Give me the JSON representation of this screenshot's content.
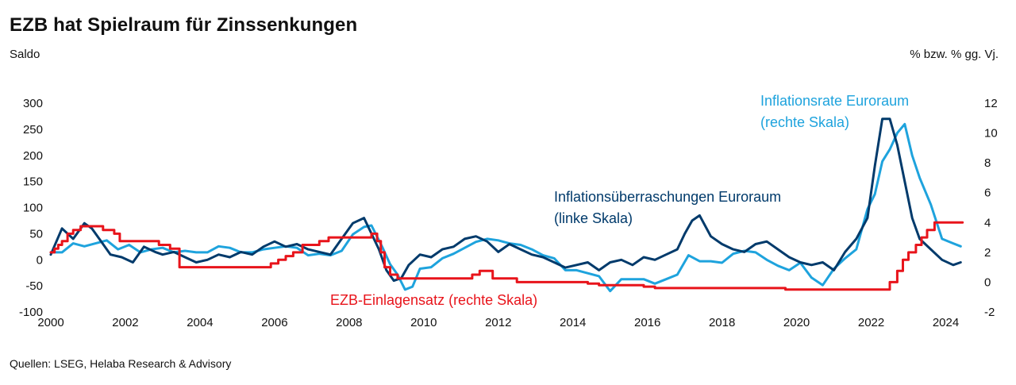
{
  "title": "EZB hat Spielraum für Zinssenkungen",
  "unit_left": "Saldo",
  "unit_right": "% bzw. % gg. Vj.",
  "source": "Quellen: LSEG, Helaba Research & Advisory",
  "chart_data": {
    "type": "line",
    "x_ticks": [
      "2000",
      "2002",
      "2004",
      "2006",
      "2008",
      "2010",
      "2012",
      "2014",
      "2016",
      "2018",
      "2020",
      "2022",
      "2024"
    ],
    "xlim": [
      2000,
      2024.5
    ],
    "y_left": {
      "ticks": [
        300,
        250,
        200,
        150,
        100,
        50,
        0,
        -50,
        -100
      ],
      "lim": [
        -100,
        300
      ]
    },
    "y_right": {
      "ticks": [
        12,
        10,
        8,
        6,
        4,
        2,
        0,
        -2
      ],
      "lim": [
        -2,
        12
      ]
    },
    "series": [
      {
        "name": "Inflationsüberraschungen Euroraum",
        "label_line2": "(linke Skala)",
        "axis": "left",
        "color": "#003a6b",
        "x": [
          2000,
          2000.3,
          2000.6,
          2000.9,
          2001.1,
          2001.3,
          2001.6,
          2001.9,
          2002.2,
          2002.5,
          2002.8,
          2003.0,
          2003.3,
          2003.6,
          2003.9,
          2004.2,
          2004.5,
          2004.8,
          2005.1,
          2005.4,
          2005.7,
          2006.0,
          2006.3,
          2006.6,
          2006.9,
          2007.2,
          2007.5,
          2007.8,
          2008.1,
          2008.4,
          2008.6,
          2008.8,
          2009.0,
          2009.2,
          2009.4,
          2009.6,
          2009.9,
          2010.2,
          2010.5,
          2010.8,
          2011.1,
          2011.4,
          2011.7,
          2012.0,
          2012.3,
          2012.6,
          2012.9,
          2013.2,
          2013.5,
          2013.8,
          2014.1,
          2014.4,
          2014.7,
          2015.0,
          2015.3,
          2015.6,
          2015.9,
          2016.2,
          2016.5,
          2016.8,
          2017.0,
          2017.2,
          2017.4,
          2017.7,
          2018.0,
          2018.3,
          2018.6,
          2018.9,
          2019.2,
          2019.5,
          2019.8,
          2020.1,
          2020.4,
          2020.7,
          2021.0,
          2021.3,
          2021.6,
          2021.9,
          2022.1,
          2022.3,
          2022.5,
          2022.7,
          2022.9,
          2023.1,
          2023.3,
          2023.6,
          2023.9,
          2024.2,
          2024.4
        ],
        "values": [
          10,
          60,
          40,
          70,
          60,
          40,
          10,
          5,
          -5,
          25,
          15,
          10,
          15,
          5,
          -5,
          0,
          10,
          5,
          15,
          10,
          25,
          35,
          25,
          30,
          20,
          15,
          10,
          40,
          70,
          80,
          50,
          20,
          -20,
          -40,
          -35,
          -10,
          10,
          5,
          20,
          25,
          40,
          45,
          35,
          15,
          30,
          20,
          10,
          5,
          -5,
          -15,
          -10,
          -5,
          -20,
          -5,
          0,
          -10,
          5,
          0,
          10,
          20,
          50,
          75,
          85,
          45,
          30,
          20,
          15,
          30,
          35,
          20,
          5,
          -5,
          -10,
          -5,
          -20,
          15,
          40,
          80,
          180,
          270,
          270,
          220,
          150,
          80,
          40,
          20,
          0,
          -10,
          -5
        ]
      },
      {
        "name": "Inflationsrate Euroraum",
        "label_line2": "(rechte Skala)",
        "axis": "right",
        "color": "#1ea3dd",
        "x": [
          2000,
          2000.3,
          2000.6,
          2000.9,
          2001.2,
          2001.5,
          2001.8,
          2002.1,
          2002.4,
          2002.7,
          2003.0,
          2003.3,
          2003.6,
          2003.9,
          2004.2,
          2004.5,
          2004.8,
          2005.1,
          2005.4,
          2005.7,
          2006.0,
          2006.3,
          2006.6,
          2006.9,
          2007.2,
          2007.5,
          2007.8,
          2008.1,
          2008.4,
          2008.6,
          2008.9,
          2009.1,
          2009.3,
          2009.5,
          2009.7,
          2009.9,
          2010.2,
          2010.5,
          2010.8,
          2011.1,
          2011.4,
          2011.7,
          2012.0,
          2012.3,
          2012.6,
          2012.9,
          2013.2,
          2013.5,
          2013.8,
          2014.1,
          2014.4,
          2014.7,
          2015.0,
          2015.3,
          2015.6,
          2015.9,
          2016.2,
          2016.5,
          2016.8,
          2017.1,
          2017.4,
          2017.7,
          2018.0,
          2018.3,
          2018.6,
          2018.9,
          2019.2,
          2019.5,
          2019.8,
          2020.1,
          2020.4,
          2020.7,
          2021.0,
          2021.3,
          2021.6,
          2021.9,
          2022.1,
          2022.3,
          2022.5,
          2022.7,
          2022.9,
          2023.1,
          2023.3,
          2023.6,
          2023.9,
          2024.2,
          2024.4
        ],
        "values": [
          2.0,
          2.0,
          2.6,
          2.4,
          2.6,
          2.8,
          2.2,
          2.5,
          2.0,
          2.2,
          2.3,
          2.0,
          2.1,
          2.0,
          2.0,
          2.4,
          2.3,
          2.0,
          2.0,
          2.2,
          2.3,
          2.4,
          2.3,
          1.8,
          1.9,
          1.8,
          2.1,
          3.2,
          3.7,
          3.8,
          2.3,
          1.2,
          0.5,
          -0.5,
          -0.3,
          0.9,
          1.0,
          1.6,
          1.9,
          2.3,
          2.7,
          2.9,
          2.8,
          2.6,
          2.5,
          2.2,
          1.8,
          1.6,
          0.8,
          0.8,
          0.6,
          0.4,
          -0.6,
          0.2,
          0.2,
          0.2,
          -0.1,
          0.2,
          0.5,
          1.8,
          1.4,
          1.4,
          1.3,
          1.9,
          2.1,
          2.0,
          1.5,
          1.1,
          0.8,
          1.3,
          0.3,
          -0.2,
          0.9,
          1.6,
          2.2,
          4.9,
          5.9,
          8.1,
          8.9,
          10.0,
          10.6,
          8.5,
          7.0,
          5.2,
          2.9,
          2.6,
          2.4
        ]
      },
      {
        "name": "EZB-Einlagensatz (rechte Skala)",
        "axis": "right",
        "color": "#e8141b",
        "step": true,
        "x": [
          2000,
          2000.1,
          2000.2,
          2000.3,
          2000.45,
          2000.6,
          2000.8,
          2001.4,
          2001.7,
          2001.85,
          2002.9,
          2003.2,
          2003.45,
          2005.9,
          2006.1,
          2006.3,
          2006.5,
          2006.75,
          2007.2,
          2007.45,
          2008.6,
          2008.75,
          2008.85,
          2008.95,
          2009.1,
          2009.3,
          2011.3,
          2011.5,
          2011.85,
          2012.5,
          2013.3,
          2014.4,
          2014.7,
          2015.9,
          2016.2,
          2019.7,
          2022.5,
          2022.7,
          2022.85,
          2023.0,
          2023.2,
          2023.35,
          2023.5,
          2023.7,
          2024.45
        ],
        "values": [
          2.0,
          2.25,
          2.5,
          2.75,
          3.25,
          3.5,
          3.75,
          3.5,
          3.25,
          2.75,
          2.5,
          2.25,
          1.0,
          1.25,
          1.5,
          1.75,
          2.0,
          2.5,
          2.75,
          3.0,
          3.25,
          2.75,
          2.0,
          1.0,
          0.5,
          0.25,
          0.5,
          0.75,
          0.25,
          0.0,
          0.0,
          -0.1,
          -0.2,
          -0.3,
          -0.4,
          -0.5,
          0.0,
          0.75,
          1.5,
          2.0,
          2.5,
          3.0,
          3.5,
          4.0,
          4.0
        ]
      }
    ],
    "annotations": [
      {
        "text": "Inflationsrate Euroraum",
        "text2": "(rechte Skala)",
        "color": "#1ea3dd"
      },
      {
        "text": "Inflationsüberraschungen Euroraum",
        "text2": "(linke Skala)",
        "color": "#003a6b"
      },
      {
        "text": "EZB-Einlagensatz (rechte Skala)",
        "color": "#e8141b"
      }
    ],
    "grid": false
  }
}
